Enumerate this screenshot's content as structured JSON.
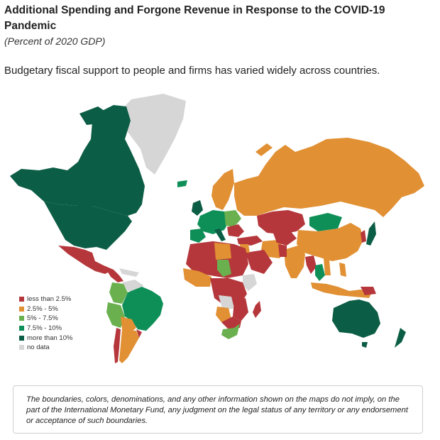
{
  "header": {
    "title": "Additional Spending and Forgone Revenue in Response to the COVID-19 Pandemic",
    "subtitle": "(Percent of 2020 GDP)",
    "lede": "Budgetary fiscal support to people and firms has varied widely across countries."
  },
  "colors": {
    "less_than_2_5": "#b5373b",
    "2_5_to_5": "#e19034",
    "5_to_7_5": "#6ab04f",
    "7_5_to_10": "#0e8f58",
    "more_than_10": "#0c5d45",
    "no_data": "#d6d6d6"
  },
  "legend": [
    {
      "label": "less than 2.5%",
      "color": "#b5373b"
    },
    {
      "label": "2.5% - 5%",
      "color": "#e19034"
    },
    {
      "label": "5% - 7.5%",
      "color": "#6ab04f"
    },
    {
      "label": "7.5% - 10%",
      "color": "#0e8f58"
    },
    {
      "label": "more than 10%",
      "color": "#0c5d45"
    },
    {
      "label": "no data",
      "color": "#d6d6d6"
    }
  ],
  "disclaimer": "The boundaries, colors, denominations, and any other information shown on the maps do not imply, on the part of the International Monetary Fund, any judgment on the legal status of any territory or any endorsement or acceptance of such boundaries."
}
